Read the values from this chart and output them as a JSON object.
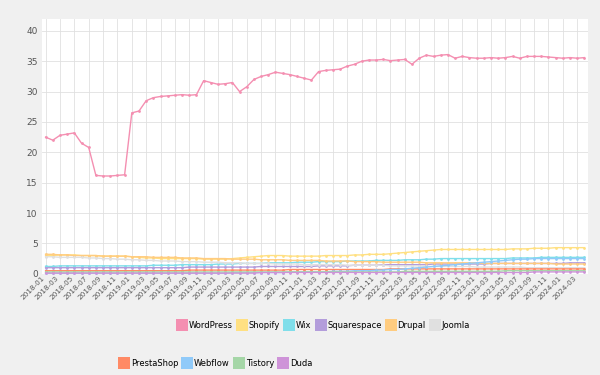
{
  "background_color": "#f0f0f0",
  "plot_bg_color": "#ffffff",
  "grid_color": "#e0e0e0",
  "series_order": [
    "WordPress",
    "Shopify",
    "Wix",
    "Squarespace",
    "Drupal",
    "Joomla",
    "PrestaShop",
    "Webflow",
    "Tistory",
    "Duda"
  ],
  "series": {
    "WordPress": {
      "color": "#f48fb1",
      "values": [
        22.5,
        22.0,
        22.8,
        23.0,
        23.2,
        21.5,
        20.8,
        16.2,
        16.1,
        16.1,
        16.2,
        16.3,
        26.5,
        26.8,
        28.5,
        29.0,
        29.2,
        29.3,
        29.4,
        29.5,
        29.4,
        29.5,
        31.8,
        31.5,
        31.2,
        31.3,
        31.5,
        30.0,
        30.8,
        32.0,
        32.5,
        32.8,
        33.2,
        33.0,
        32.8,
        32.5,
        32.2,
        31.9,
        33.3,
        33.5,
        33.6,
        33.7,
        34.2,
        34.5,
        35.0,
        35.2,
        35.2,
        35.3,
        35.1,
        35.2,
        35.3,
        34.5,
        35.5,
        36.0,
        35.8,
        36.0,
        36.1,
        35.5,
        35.8,
        35.6,
        35.5,
        35.5,
        35.6,
        35.5,
        35.6,
        35.8,
        35.5,
        35.8,
        35.8,
        35.8,
        35.7,
        35.6,
        35.5,
        35.6,
        35.5,
        35.6
      ]
    },
    "Shopify": {
      "color": "#ffe082",
      "values": [
        3.0,
        3.0,
        3.1,
        3.1,
        3.1,
        3.0,
        3.0,
        3.0,
        2.9,
        2.9,
        2.9,
        2.9,
        2.8,
        2.7,
        2.6,
        2.6,
        2.5,
        2.5,
        2.5,
        2.5,
        2.5,
        2.5,
        2.4,
        2.4,
        2.4,
        2.4,
        2.5,
        2.6,
        2.7,
        2.8,
        2.9,
        3.0,
        3.0,
        3.0,
        2.9,
        2.9,
        2.9,
        2.9,
        2.9,
        3.0,
        3.0,
        3.0,
        3.0,
        3.1,
        3.1,
        3.2,
        3.2,
        3.2,
        3.3,
        3.4,
        3.5,
        3.6,
        3.7,
        3.8,
        3.9,
        4.0,
        4.0,
        4.0,
        4.0,
        4.0,
        4.0,
        4.0,
        4.0,
        4.0,
        4.0,
        4.1,
        4.1,
        4.1,
        4.2,
        4.2,
        4.2,
        4.3,
        4.3,
        4.3,
        4.3,
        4.3
      ]
    },
    "Wix": {
      "color": "#80deea",
      "values": [
        1.2,
        1.2,
        1.3,
        1.3,
        1.3,
        1.3,
        1.3,
        1.3,
        1.3,
        1.3,
        1.3,
        1.3,
        1.3,
        1.3,
        1.3,
        1.4,
        1.4,
        1.4,
        1.4,
        1.5,
        1.5,
        1.5,
        1.5,
        1.5,
        1.6,
        1.6,
        1.6,
        1.7,
        1.7,
        1.7,
        1.7,
        1.8,
        1.8,
        1.8,
        1.8,
        1.9,
        1.9,
        1.9,
        2.0,
        2.0,
        2.0,
        2.0,
        2.1,
        2.1,
        2.1,
        2.1,
        2.2,
        2.2,
        2.2,
        2.2,
        2.3,
        2.3,
        2.3,
        2.4,
        2.4,
        2.5,
        2.5,
        2.5,
        2.5,
        2.5,
        2.5,
        2.5,
        2.5,
        2.5,
        2.5,
        2.6,
        2.6,
        2.6,
        2.6,
        2.7,
        2.7,
        2.7,
        2.7,
        2.7,
        2.7,
        2.7
      ]
    },
    "Squarespace": {
      "color": "#b39ddb",
      "values": [
        1.0,
        1.0,
        1.0,
        1.0,
        1.0,
        1.0,
        1.0,
        1.0,
        1.0,
        1.0,
        1.0,
        1.0,
        1.0,
        1.0,
        1.0,
        1.0,
        1.0,
        1.0,
        1.0,
        1.0,
        1.1,
        1.1,
        1.1,
        1.1,
        1.1,
        1.1,
        1.1,
        1.1,
        1.1,
        1.1,
        1.2,
        1.2,
        1.2,
        1.2,
        1.2,
        1.2,
        1.2,
        1.2,
        1.3,
        1.3,
        1.3,
        1.3,
        1.3,
        1.4,
        1.4,
        1.4,
        1.4,
        1.5,
        1.5,
        1.5,
        1.5,
        1.5,
        1.5,
        1.5,
        1.6,
        1.6,
        1.6,
        1.6,
        1.6,
        1.6,
        1.6,
        1.6,
        1.7,
        1.7,
        1.7,
        1.7,
        1.7,
        1.7,
        1.7,
        1.7,
        1.7,
        1.7,
        1.7,
        1.8,
        1.8,
        1.8
      ]
    },
    "Drupal": {
      "color": "#ffcc80",
      "values": [
        3.2,
        3.2,
        3.1,
        3.1,
        3.0,
        3.0,
        3.0,
        3.0,
        2.9,
        2.9,
        2.9,
        2.9,
        2.8,
        2.8,
        2.8,
        2.7,
        2.7,
        2.7,
        2.7,
        2.6,
        2.6,
        2.6,
        2.5,
        2.5,
        2.5,
        2.5,
        2.4,
        2.4,
        2.4,
        2.4,
        2.3,
        2.3,
        2.3,
        2.3,
        2.2,
        2.2,
        2.2,
        2.2,
        2.2,
        2.1,
        2.1,
        2.1,
        2.1,
        2.0,
        2.0,
        2.0,
        2.0,
        1.9,
        1.9,
        1.9,
        1.9,
        1.9,
        1.9,
        1.8,
        1.8,
        1.8,
        1.8,
        1.8,
        1.8,
        1.8,
        1.8,
        1.7,
        1.7,
        1.7,
        1.7,
        1.7,
        1.7,
        1.7,
        1.7,
        1.7,
        1.7,
        1.6,
        1.6,
        1.6,
        1.6,
        1.6
      ]
    },
    "Joomla": {
      "color": "#e0e0e0",
      "values": [
        2.8,
        2.8,
        2.7,
        2.7,
        2.7,
        2.7,
        2.6,
        2.6,
        2.5,
        2.5,
        2.4,
        2.4,
        2.3,
        2.3,
        2.2,
        2.2,
        2.1,
        2.1,
        2.1,
        2.0,
        2.0,
        2.0,
        1.9,
        1.9,
        1.9,
        1.8,
        1.8,
        1.8,
        1.7,
        1.7,
        1.7,
        1.7,
        1.6,
        1.6,
        1.6,
        1.6,
        1.5,
        1.5,
        1.5,
        1.5,
        1.5,
        1.5,
        1.4,
        1.4,
        1.4,
        1.4,
        1.4,
        1.4,
        1.3,
        1.3,
        1.3,
        1.3,
        1.3,
        1.2,
        1.2,
        1.2,
        1.2,
        1.2,
        1.2,
        1.2,
        1.1,
        1.1,
        1.1,
        1.1,
        1.1,
        1.1,
        1.1,
        1.0,
        1.0,
        1.0,
        1.0,
        1.0,
        1.0,
        1.0,
        1.0,
        1.0
      ]
    },
    "PrestaShop": {
      "color": "#ff8a65",
      "values": [
        0.5,
        0.5,
        0.5,
        0.5,
        0.5,
        0.5,
        0.5,
        0.5,
        0.5,
        0.5,
        0.5,
        0.5,
        0.5,
        0.5,
        0.5,
        0.5,
        0.5,
        0.5,
        0.5,
        0.5,
        0.6,
        0.6,
        0.6,
        0.6,
        0.6,
        0.6,
        0.6,
        0.6,
        0.6,
        0.6,
        0.6,
        0.6,
        0.6,
        0.6,
        0.7,
        0.7,
        0.7,
        0.7,
        0.7,
        0.7,
        0.7,
        0.7,
        0.7,
        0.7,
        0.7,
        0.7,
        0.7,
        0.7,
        0.8,
        0.8,
        0.8,
        0.8,
        0.8,
        0.8,
        0.8,
        0.8,
        0.8,
        0.8,
        0.8,
        0.8,
        0.8,
        0.8,
        0.8,
        0.8,
        0.8,
        0.8,
        0.8,
        0.8,
        0.8,
        0.8,
        0.8,
        0.8,
        0.8,
        0.8,
        0.8,
        0.8
      ]
    },
    "Webflow": {
      "color": "#90caf9",
      "values": [
        0.1,
        0.1,
        0.1,
        0.1,
        0.1,
        0.1,
        0.1,
        0.1,
        0.1,
        0.1,
        0.1,
        0.1,
        0.1,
        0.1,
        0.1,
        0.1,
        0.1,
        0.1,
        0.1,
        0.1,
        0.1,
        0.1,
        0.1,
        0.1,
        0.1,
        0.1,
        0.2,
        0.2,
        0.2,
        0.2,
        0.2,
        0.2,
        0.2,
        0.2,
        0.3,
        0.3,
        0.3,
        0.3,
        0.3,
        0.3,
        0.4,
        0.4,
        0.4,
        0.5,
        0.5,
        0.5,
        0.6,
        0.6,
        0.7,
        0.7,
        0.8,
        0.9,
        1.0,
        1.1,
        1.2,
        1.3,
        1.4,
        1.5,
        1.6,
        1.7,
        1.8,
        1.9,
        2.0,
        2.1,
        2.2,
        2.3,
        2.4,
        2.4,
        2.5,
        2.5,
        2.5,
        2.5,
        2.5,
        2.5,
        2.5,
        2.5
      ]
    },
    "Tistory": {
      "color": "#a5d6a7",
      "values": [
        0.3,
        0.3,
        0.3,
        0.3,
        0.3,
        0.3,
        0.3,
        0.3,
        0.3,
        0.3,
        0.3,
        0.3,
        0.3,
        0.3,
        0.3,
        0.3,
        0.3,
        0.3,
        0.3,
        0.3,
        0.3,
        0.3,
        0.3,
        0.3,
        0.3,
        0.3,
        0.3,
        0.3,
        0.3,
        0.3,
        0.3,
        0.3,
        0.3,
        0.3,
        0.3,
        0.3,
        0.3,
        0.3,
        0.3,
        0.3,
        0.3,
        0.3,
        0.3,
        0.3,
        0.3,
        0.3,
        0.3,
        0.3,
        0.3,
        0.3,
        0.4,
        0.4,
        0.4,
        0.4,
        0.4,
        0.4,
        0.4,
        0.4,
        0.4,
        0.4,
        0.4,
        0.4,
        0.4,
        0.4,
        0.5,
        0.5,
        0.5,
        0.5,
        0.5,
        0.5,
        0.5,
        0.5,
        0.5,
        0.5,
        0.5,
        0.5
      ]
    },
    "Duda": {
      "color": "#ce93d8",
      "values": [
        0.1,
        0.1,
        0.1,
        0.1,
        0.1,
        0.1,
        0.1,
        0.1,
        0.1,
        0.1,
        0.1,
        0.1,
        0.1,
        0.1,
        0.1,
        0.1,
        0.1,
        0.1,
        0.1,
        0.1,
        0.1,
        0.1,
        0.1,
        0.1,
        0.1,
        0.1,
        0.1,
        0.1,
        0.1,
        0.1,
        0.2,
        0.2,
        0.2,
        0.2,
        0.2,
        0.2,
        0.2,
        0.2,
        0.2,
        0.2,
        0.2,
        0.2,
        0.2,
        0.2,
        0.2,
        0.2,
        0.2,
        0.2,
        0.2,
        0.2,
        0.2,
        0.2,
        0.2,
        0.2,
        0.2,
        0.2,
        0.2,
        0.2,
        0.2,
        0.2,
        0.2,
        0.2,
        0.2,
        0.2,
        0.2,
        0.2,
        0.2,
        0.2,
        0.3,
        0.3,
        0.3,
        0.3,
        0.3,
        0.3,
        0.3,
        0.3
      ]
    }
  },
  "yticks": [
    0,
    5,
    10,
    15,
    20,
    25,
    30,
    35,
    40
  ],
  "ylim": [
    0,
    42
  ],
  "markersize": 2,
  "linewidth": 1.0
}
